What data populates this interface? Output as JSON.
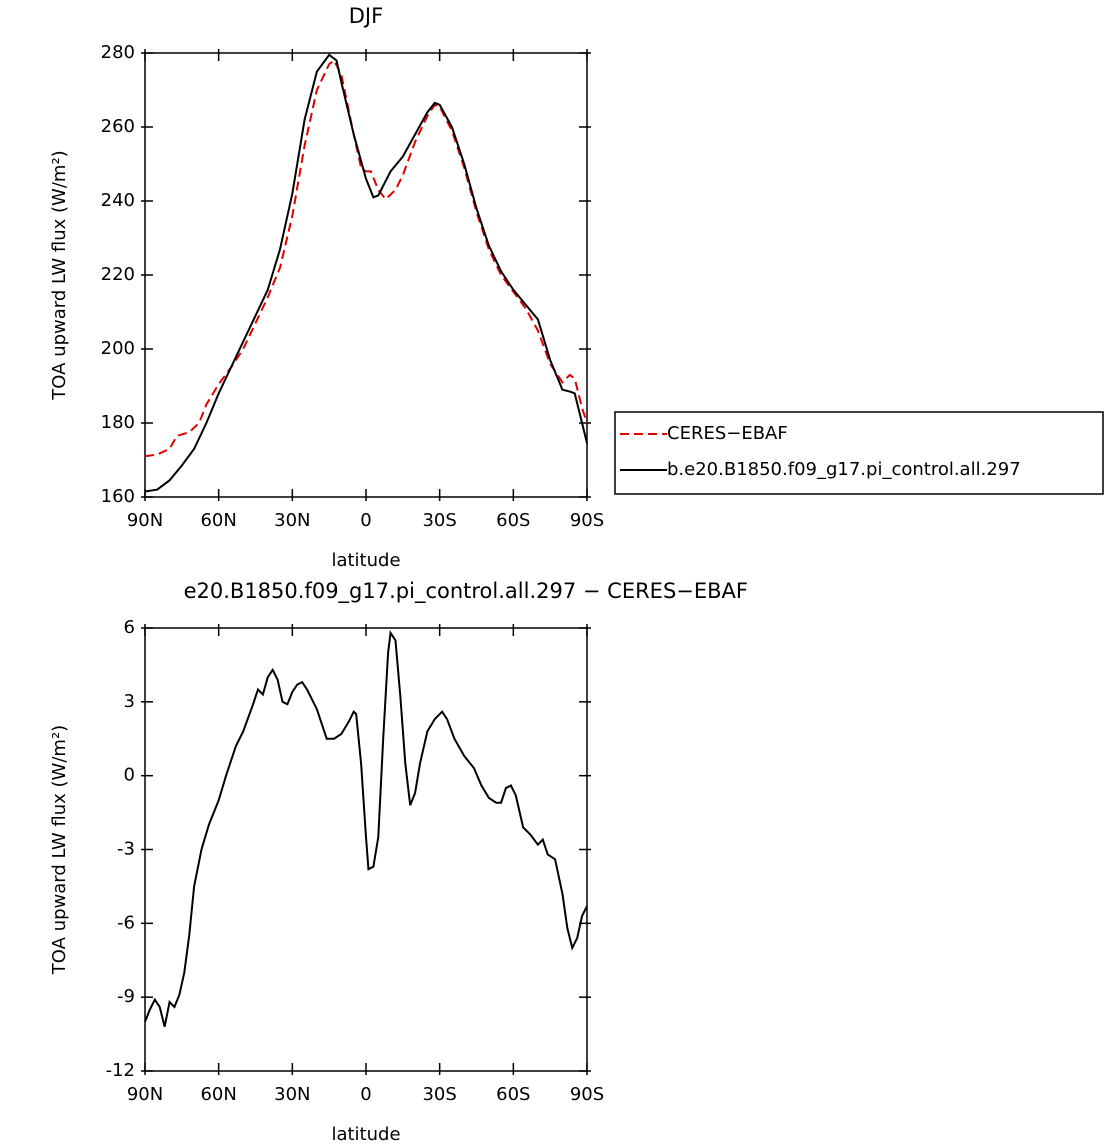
{
  "chart_data": [
    {
      "type": "line",
      "title": "DJF",
      "xlabel": "latitude",
      "ylabel": "TOA upward LW flux (W/m²)",
      "xlim": [
        90,
        -90
      ],
      "ylim": [
        160,
        280
      ],
      "xticks": [
        {
          "value": 90,
          "label": "90N"
        },
        {
          "value": 60,
          "label": "60N"
        },
        {
          "value": 30,
          "label": "30N"
        },
        0,
        {
          "value": -30,
          "label": "30S"
        },
        {
          "value": -60,
          "label": "60S"
        },
        {
          "value": -90,
          "label": "90S"
        }
      ],
      "yticks": [
        160,
        180,
        200,
        220,
        240,
        260,
        280
      ],
      "legend": "right",
      "series": [
        {
          "name": "CERES−EBAF",
          "color": "#e00000",
          "dash": true,
          "x": [
            90,
            85,
            80,
            77,
            72,
            68,
            65,
            60,
            55,
            50,
            45,
            40,
            35,
            30,
            25,
            20,
            15,
            13,
            10,
            5,
            2,
            0,
            -2,
            -5,
            -8,
            -12,
            -15,
            -20,
            -25,
            -28,
            -30,
            -35,
            -40,
            -45,
            -50,
            -55,
            -60,
            -65,
            -70,
            -75,
            -80,
            -83,
            -85,
            -88,
            -90
          ],
          "values": [
            171,
            171.5,
            173,
            176.5,
            177.5,
            180,
            185,
            190.5,
            195,
            200,
            207,
            214,
            222,
            236,
            255,
            270,
            277,
            278,
            274,
            258,
            249,
            248,
            248,
            243,
            240.5,
            243,
            247,
            256,
            263,
            266,
            265.5,
            259,
            249,
            237,
            227,
            220,
            215.5,
            211,
            205,
            196,
            191,
            193,
            192,
            184,
            180
          ]
        },
        {
          "name": "b.e20.B1850.f09_g17.pi_control.all.297",
          "color": "#000000",
          "dash": false,
          "x": [
            90,
            85,
            80,
            75,
            70,
            65,
            60,
            55,
            50,
            45,
            40,
            35,
            30,
            25,
            20,
            15,
            12,
            10,
            5,
            0,
            -3,
            -5,
            -10,
            -15,
            -20,
            -25,
            -28,
            -30,
            -35,
            -40,
            -45,
            -50,
            -55,
            -60,
            -65,
            -70,
            -75,
            -80,
            -83,
            -85,
            -88,
            -90
          ],
          "values": [
            161.5,
            162,
            164.5,
            168.5,
            173,
            180,
            188,
            195,
            202,
            209,
            216,
            227,
            242,
            262,
            275,
            279.5,
            278,
            272,
            258,
            246,
            241,
            241.5,
            248,
            252,
            258,
            264,
            266.5,
            266,
            260,
            250,
            238,
            228,
            221,
            216,
            212,
            208,
            197,
            189,
            188.5,
            188,
            180,
            174.5
          ]
        }
      ]
    },
    {
      "type": "line",
      "title": "e20.B1850.f09_g17.pi_control.all.297 − CERES−EBAF",
      "xlabel": "latitude",
      "ylabel": "TOA upward LW flux (W/m²)",
      "xlim": [
        90,
        -90
      ],
      "ylim": [
        -12,
        6
      ],
      "xticks": [
        {
          "value": 90,
          "label": "90N"
        },
        {
          "value": 60,
          "label": "60N"
        },
        {
          "value": 30,
          "label": "30N"
        },
        0,
        {
          "value": -30,
          "label": "30S"
        },
        {
          "value": -60,
          "label": "60S"
        },
        {
          "value": -90,
          "label": "90S"
        }
      ],
      "yticks": [
        -12,
        -9,
        -6,
        -3,
        0,
        3,
        6
      ],
      "series": [
        {
          "color": "#000000",
          "dash": false,
          "x": [
            90,
            88,
            86,
            84,
            82,
            80,
            78,
            76,
            74,
            72,
            70,
            67,
            64,
            60,
            57,
            53,
            50,
            46,
            44,
            42,
            40,
            38,
            36,
            34,
            32,
            30,
            28,
            26,
            24,
            20,
            16,
            13,
            10,
            7,
            5,
            4,
            2,
            0,
            -1,
            -3,
            -5,
            -7,
            -9,
            -10,
            -12,
            -14,
            -16,
            -18,
            -20,
            -22,
            -25,
            -28,
            -31,
            -33,
            -36,
            -40,
            -44,
            -47,
            -50,
            -53,
            -55,
            -57,
            -59,
            -61,
            -64,
            -67,
            -70,
            -72,
            -74,
            -77,
            -80,
            -82,
            -84,
            -86,
            -88,
            -90
          ],
          "values": [
            -10,
            -9.5,
            -9.1,
            -9.4,
            -10.2,
            -9.2,
            -9.4,
            -8.9,
            -8,
            -6.5,
            -4.5,
            -3,
            -2,
            -1,
            0,
            1.2,
            1.8,
            2.9,
            3.5,
            3.3,
            4,
            4.3,
            3.9,
            3,
            2.9,
            3.4,
            3.7,
            3.8,
            3.5,
            2.7,
            1.5,
            1.5,
            1.7,
            2.2,
            2.6,
            2.5,
            0.5,
            -2.5,
            -3.8,
            -3.7,
            -2.5,
            1.5,
            5,
            5.8,
            5.5,
            3.2,
            0.5,
            -1.2,
            -0.7,
            0.5,
            1.8,
            2.3,
            2.6,
            2.3,
            1.5,
            0.8,
            0.3,
            -0.4,
            -0.9,
            -1.1,
            -1.1,
            -0.5,
            -0.4,
            -0.8,
            -2.1,
            -2.4,
            -2.8,
            -2.6,
            -3.2,
            -3.4,
            -4.8,
            -6.2,
            -7,
            -6.6,
            -5.7,
            -5.3
          ]
        }
      ]
    }
  ]
}
